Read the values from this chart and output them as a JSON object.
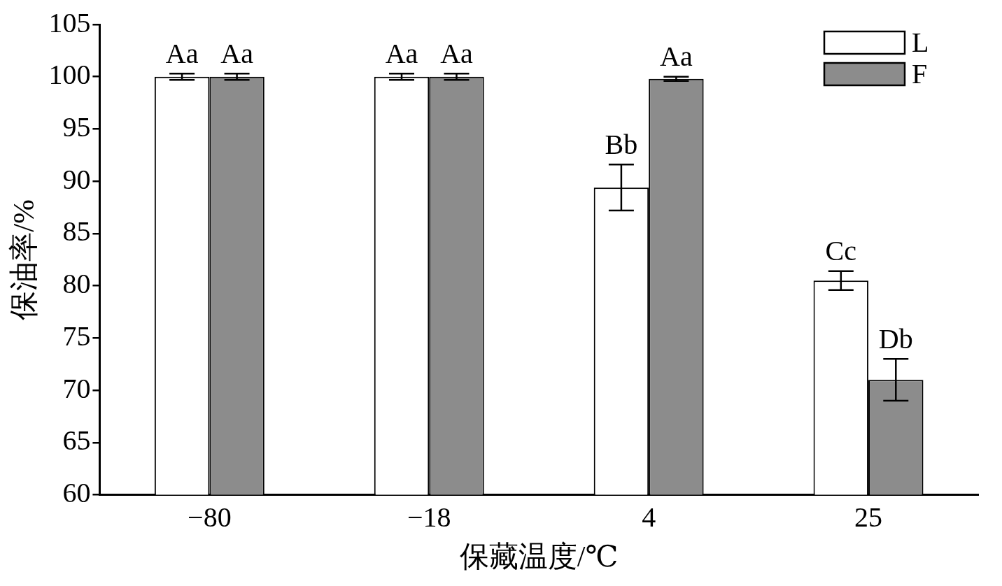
{
  "chart_data": {
    "type": "bar",
    "xlabel": "保藏温度/℃",
    "ylabel": "保油率/%",
    "categories": [
      "−80",
      "−18",
      "4",
      "25"
    ],
    "series": [
      {
        "name": "L",
        "color": "#ffffff",
        "values": [
          100,
          100,
          89.4,
          80.5
        ],
        "errors": [
          0.3,
          0.3,
          2.2,
          0.9
        ],
        "value_labels": [
          "Aa",
          "Aa",
          "Bb",
          "Cc"
        ]
      },
      {
        "name": "F",
        "color": "#8c8c8c",
        "values": [
          100,
          100,
          99.8,
          71.0
        ],
        "errors": [
          0.3,
          0.3,
          0.2,
          2.0
        ],
        "value_labels": [
          "Aa",
          "Aa",
          "Aa",
          "Db"
        ]
      }
    ],
    "ylim": [
      60,
      105
    ],
    "yticks": [
      60,
      65,
      70,
      75,
      80,
      85,
      90,
      95,
      100,
      105
    ],
    "grid": false,
    "legend": "top right"
  }
}
